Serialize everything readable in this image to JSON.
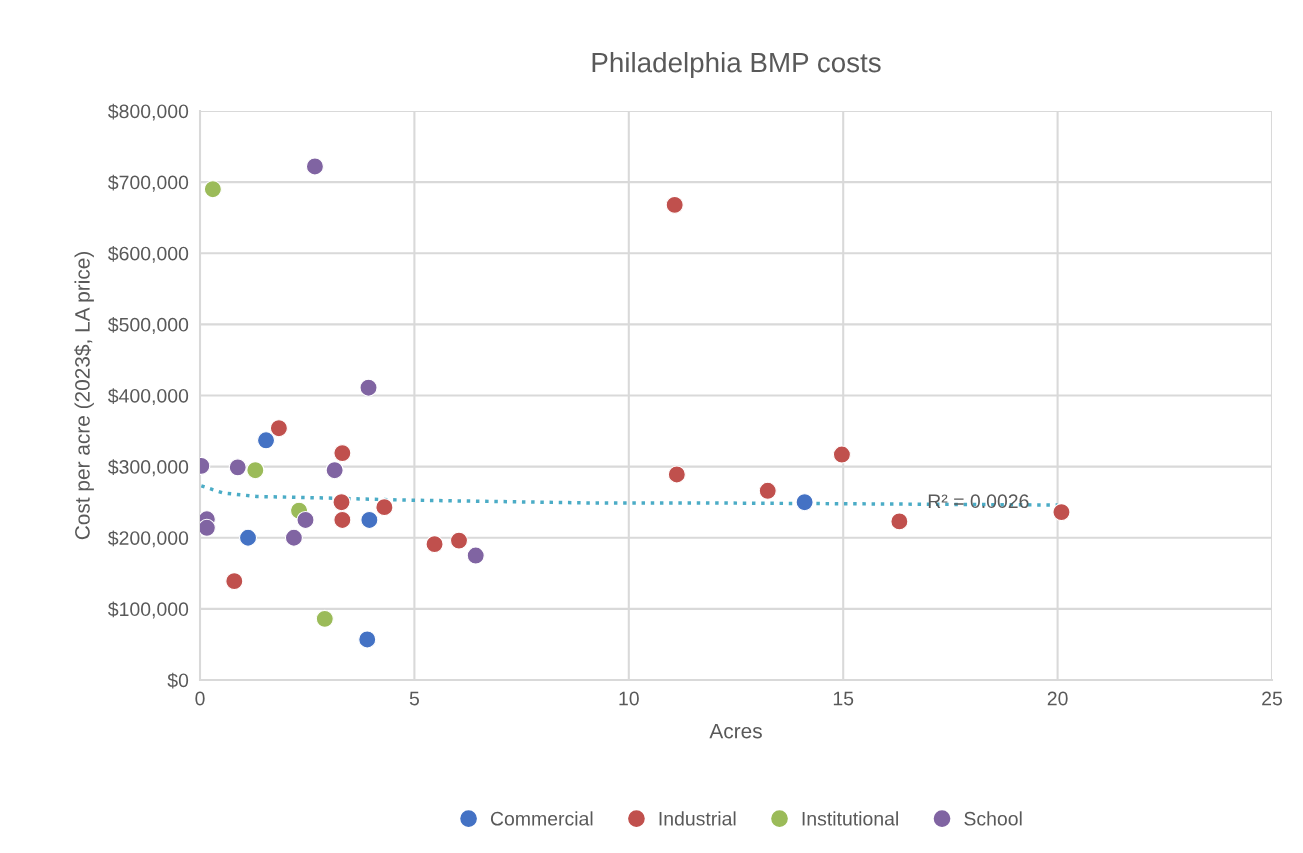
{
  "chart_data": {
    "type": "scatter",
    "title": "Philadelphia BMP costs",
    "xlabel": "Acres",
    "ylabel": "Cost per acre (2023$, LA price)",
    "xlim": [
      0,
      25
    ],
    "xticks": [
      0,
      5,
      10,
      15,
      20,
      25
    ],
    "ylim": [
      0,
      800000
    ],
    "yticks": [
      {
        "value": 0,
        "label": "$0"
      },
      {
        "value": 100000,
        "label": "$100,000"
      },
      {
        "value": 200000,
        "label": "$200,000"
      },
      {
        "value": 300000,
        "label": "$300,000"
      },
      {
        "value": 400000,
        "label": "$400,000"
      },
      {
        "value": 500000,
        "label": "$500,000"
      },
      {
        "value": 600000,
        "label": "$600,000"
      },
      {
        "value": 700000,
        "label": "$700,000"
      },
      {
        "value": 800000,
        "label": "$800,000"
      }
    ],
    "grid": true,
    "legend": "bottom",
    "marker": "circle",
    "series": [
      {
        "name": "Commercial",
        "color": "#4472c4",
        "x": [
          1.54,
          3.95,
          1.12,
          3.9,
          14.1
        ],
        "values": [
          337000,
          225000,
          200000,
          57000,
          250000
        ]
      },
      {
        "name": "Industrial",
        "color": "#c0504d",
        "x": [
          1.84,
          3.32,
          3.3,
          4.3,
          3.32,
          5.47,
          6.04,
          0.8,
          11.07,
          11.12,
          13.24,
          14.97,
          16.31,
          20.09
        ],
        "values": [
          354000,
          319000,
          250000,
          243000,
          225000,
          191000,
          196000,
          139000,
          668000,
          289000,
          266000,
          317000,
          223000,
          236000
        ]
      },
      {
        "name": "Institutional",
        "color": "#9bbb59",
        "x": [
          1.29,
          2.31,
          2.91,
          0.3
        ],
        "values": [
          295000,
          238000,
          86000,
          690000
        ]
      },
      {
        "name": "School",
        "color": "#8064a2",
        "x": [
          0.03,
          0.88,
          3.14,
          3.93,
          2.46,
          0.16,
          0.16,
          2.19,
          6.43,
          2.68
        ],
        "values": [
          301000,
          299000,
          295000,
          411000,
          225000,
          226000,
          214000,
          200000,
          175000,
          722000
        ]
      },
      {
        "type": "line",
        "line_style": "dotted",
        "marker": "none",
        "color": "#4bacc6",
        "x": [
          0.03,
          0.53,
          1.32,
          2.87,
          4.74,
          9.02,
          11.6,
          14.5,
          20.0
        ],
        "values": [
          273000,
          263000,
          258000,
          256000,
          253000,
          249000,
          249000,
          248000,
          246000
        ]
      }
    ],
    "annotations": [
      {
        "text": "R² = 0.0026",
        "x": 16.96,
        "y": 249000
      }
    ]
  }
}
